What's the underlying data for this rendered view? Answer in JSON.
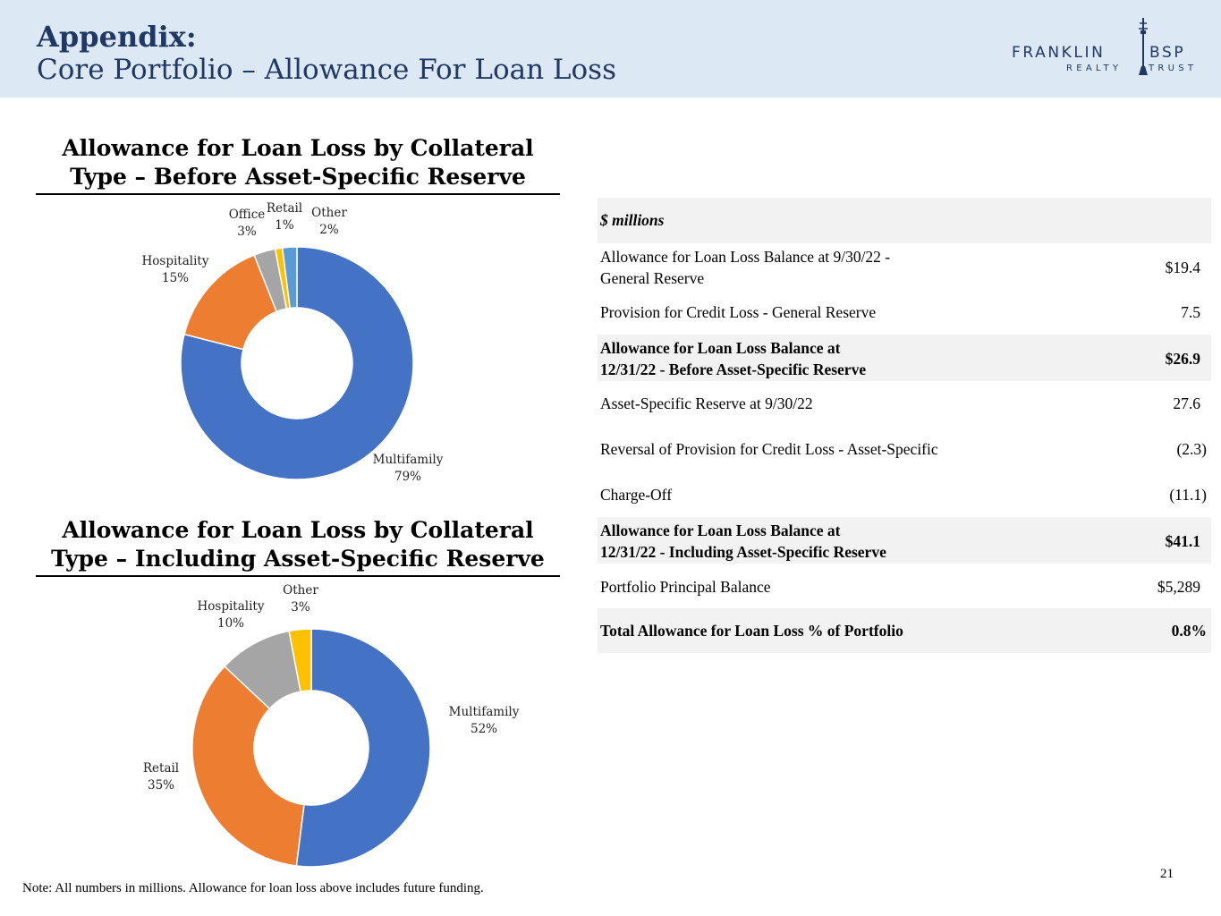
{
  "header": {
    "title": "Appendix:",
    "subtitle": "Core Portfolio – Allowance For Loan Loss",
    "logo_line1_a": "FRANKLIN",
    "logo_line1_b": "BSP",
    "logo_line2_a": "REALTY",
    "logo_line2_b": "TRUST"
  },
  "colors": {
    "header_bg": "#dde8f5",
    "title_navy": "#1f3864",
    "multifamily": "#4472c4",
    "hospitality": "#ed7d31",
    "office": "#a5a5a5",
    "retail_small": "#ffc000",
    "other_small": "#5b9bd5",
    "table_shade": "#f2f2f2"
  },
  "chart_data": [
    {
      "type": "pie",
      "title": "Allowance for Loan Loss by Collateral Type – Before Asset-Specific Reserve",
      "title_line1": "Allowance for Loan Loss by Collateral",
      "title_line2": "Type – Before Asset-Specific Reserve",
      "donut": true,
      "slices": [
        {
          "name": "Multifamily",
          "value": 79,
          "label": "79%",
          "color": "#4472c4"
        },
        {
          "name": "Hospitality",
          "value": 15,
          "label": "15%",
          "color": "#ed7d31"
        },
        {
          "name": "Office",
          "value": 3,
          "label": "3%",
          "color": "#a5a5a5"
        },
        {
          "name": "Retail",
          "value": 1,
          "label": "1%",
          "color": "#ffc000"
        },
        {
          "name": "Other",
          "value": 2,
          "label": "2%",
          "color": "#5b9bd5"
        }
      ]
    },
    {
      "type": "pie",
      "title": "Allowance for Loan Loss by Collateral Type – Including Asset-Specific Reserve",
      "title_line1": "Allowance for Loan Loss by Collateral",
      "title_line2": "Type – Including Asset-Specific Reserve",
      "donut": true,
      "slices": [
        {
          "name": "Multifamily",
          "value": 52,
          "label": "52%",
          "color": "#4472c4"
        },
        {
          "name": "Retail",
          "value": 35,
          "label": "35%",
          "color": "#ed7d31"
        },
        {
          "name": "Hospitality",
          "value": 10,
          "label": "10%",
          "color": "#a5a5a5"
        },
        {
          "name": "Other",
          "value": 3,
          "label": "3%",
          "color": "#ffc000"
        }
      ]
    }
  ],
  "table": {
    "header": "$ millions",
    "rows": [
      {
        "line1": "Allowance for Loan Loss Balance at 9/30/22 -",
        "line2": "General Reserve",
        "value": "$19.4"
      },
      {
        "line1": "Provision for Credit Loss - General Reserve",
        "line2": "",
        "value": "7.5"
      },
      {
        "line1": "Allowance for Loan Loss Balance at",
        "line2": "12/31/22 - Before Asset-Specific Reserve",
        "value": "$26.9"
      },
      {
        "line1": "Asset-Specific Reserve at 9/30/22",
        "line2": "",
        "value": "27.6"
      },
      {
        "line1": "Reversal of Provision for Credit Loss - Asset-Specific",
        "line2": "",
        "value": "(2.3)"
      },
      {
        "line1": "Charge-Off",
        "line2": "",
        "value": "(11.1)"
      },
      {
        "line1": "Allowance for Loan Loss Balance at",
        "line2": "12/31/22 - Including Asset-Specific Reserve",
        "value": "$41.1"
      },
      {
        "line1": "Portfolio Principal Balance",
        "line2": "",
        "value": "$5,289"
      },
      {
        "line1": "Total Allowance for Loan Loss % of Portfolio",
        "line2": "",
        "value": "0.8%"
      }
    ]
  },
  "footer": {
    "note": "Note: All numbers in millions. Allowance for loan loss above includes future funding.",
    "page_number": "21"
  }
}
